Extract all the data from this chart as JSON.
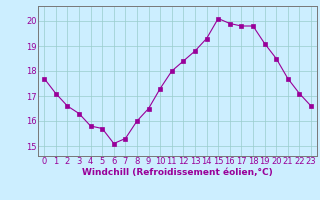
{
  "hours": [
    0,
    1,
    2,
    3,
    4,
    5,
    6,
    7,
    8,
    9,
    10,
    11,
    12,
    13,
    14,
    15,
    16,
    17,
    18,
    19,
    20,
    21,
    22,
    23
  ],
  "values": [
    17.7,
    17.1,
    16.6,
    16.3,
    15.8,
    15.7,
    15.1,
    15.3,
    16.0,
    16.5,
    17.3,
    18.0,
    18.4,
    18.8,
    19.3,
    20.1,
    19.9,
    19.8,
    19.8,
    19.1,
    18.5,
    17.7,
    17.1,
    16.6
  ],
  "line_color": "#990099",
  "marker": "s",
  "marker_size": 2.2,
  "bg_color": "#cceeff",
  "grid_color": "#99cccc",
  "ylabel_ticks": [
    15,
    16,
    17,
    18,
    19,
    20
  ],
  "ylim": [
    14.6,
    20.6
  ],
  "xlim": [
    -0.5,
    23.5
  ],
  "xlabel": "Windchill (Refroidissement éolien,°C)",
  "xlabel_fontsize": 6.5,
  "tick_fontsize": 6.0,
  "tick_color": "#990099",
  "spine_color": "#777777"
}
